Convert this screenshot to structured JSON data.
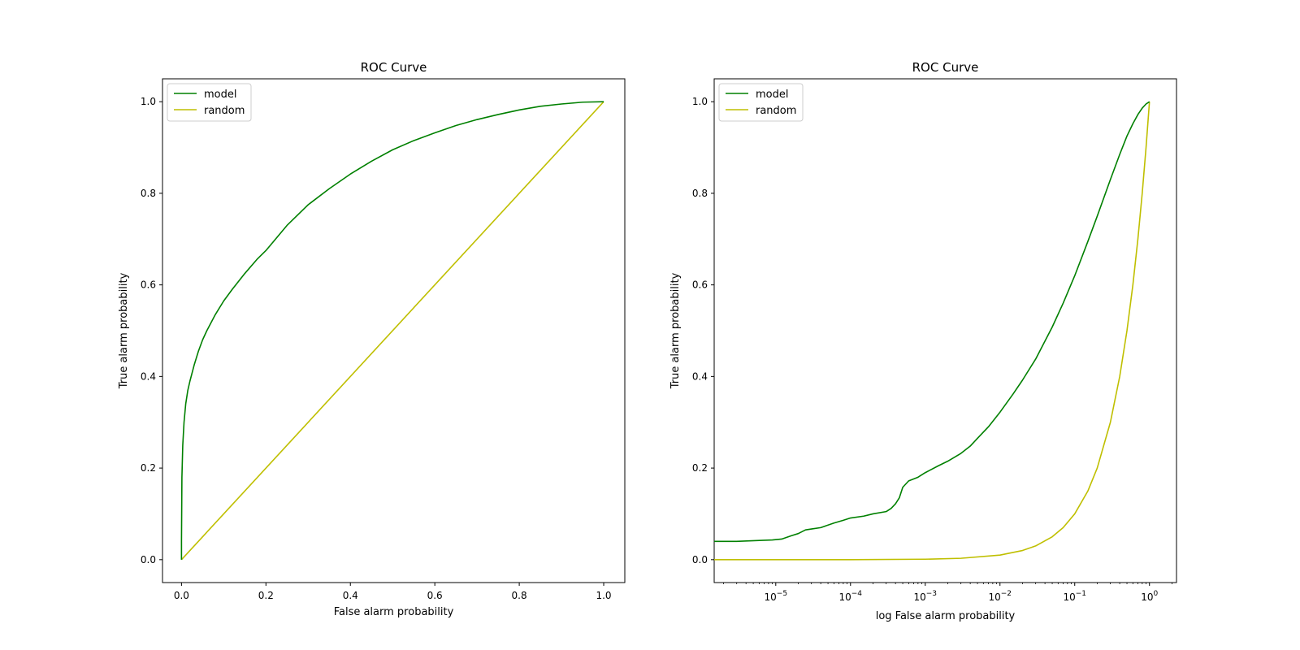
{
  "chart_data": [
    {
      "type": "line",
      "title": "ROC Curve",
      "xlabel": "False alarm probability",
      "ylabel": "True alarm probability",
      "xscale": "linear",
      "xlim": [
        -0.045,
        1.05
      ],
      "ylim": [
        -0.05,
        1.05
      ],
      "xticks": [
        0.0,
        0.2,
        0.4,
        0.6,
        0.8,
        1.0
      ],
      "xtick_labels": [
        "0.0",
        "0.2",
        "0.4",
        "0.6",
        "0.8",
        "1.0"
      ],
      "yticks": [
        0.0,
        0.2,
        0.4,
        0.6,
        0.8,
        1.0
      ],
      "ytick_labels": [
        "0.0",
        "0.2",
        "0.4",
        "0.6",
        "0.8",
        "1.0"
      ],
      "legend": "top-left",
      "grid": false,
      "series": [
        {
          "name": "model",
          "color": "#008000",
          "x": [
            0,
            0,
            0.001,
            0.003,
            0.006,
            0.01,
            0.015,
            0.02,
            0.03,
            0.04,
            0.05,
            0.06,
            0.08,
            0.1,
            0.12,
            0.15,
            0.18,
            0.2,
            0.25,
            0.3,
            0.35,
            0.4,
            0.45,
            0.5,
            0.55,
            0.6,
            0.65,
            0.7,
            0.75,
            0.8,
            0.85,
            0.9,
            0.95,
            1.0
          ],
          "y": [
            0,
            0.04,
            0.18,
            0.25,
            0.3,
            0.34,
            0.37,
            0.39,
            0.425,
            0.455,
            0.48,
            0.5,
            0.535,
            0.565,
            0.59,
            0.625,
            0.657,
            0.675,
            0.73,
            0.775,
            0.81,
            0.842,
            0.87,
            0.895,
            0.915,
            0.932,
            0.948,
            0.961,
            0.972,
            0.982,
            0.99,
            0.995,
            0.999,
            1.0
          ]
        },
        {
          "name": "random",
          "color": "#bfbf00",
          "x": [
            0,
            1
          ],
          "y": [
            0,
            1
          ]
        }
      ]
    },
    {
      "type": "line",
      "title": "ROC Curve",
      "xlabel": "log False alarm probability",
      "ylabel": "True alarm probability",
      "xscale": "log",
      "xlim": [
        1.5e-06,
        2.3
      ],
      "ylim": [
        -0.05,
        1.05
      ],
      "xticks": [
        1e-05,
        0.0001,
        0.001,
        0.01,
        0.1,
        1
      ],
      "xtick_labels": [
        {
          "base": "10",
          "exp": "−5"
        },
        {
          "base": "10",
          "exp": "−4"
        },
        {
          "base": "10",
          "exp": "−3"
        },
        {
          "base": "10",
          "exp": "−2"
        },
        {
          "base": "10",
          "exp": "−1"
        },
        {
          "base": "10",
          "exp": "0"
        }
      ],
      "yticks": [
        0.0,
        0.2,
        0.4,
        0.6,
        0.8,
        1.0
      ],
      "ytick_labels": [
        "0.0",
        "0.2",
        "0.4",
        "0.6",
        "0.8",
        "1.0"
      ],
      "legend": "top-left",
      "grid": false,
      "series": [
        {
          "name": "model",
          "color": "#008000",
          "x": [
            1.5e-06,
            3e-06,
            6e-06,
            9e-06,
            1.2e-05,
            1.6e-05,
            2e-05,
            2.5e-05,
            3e-05,
            4e-05,
            6e-05,
            8e-05,
            0.0001,
            0.00015,
            0.0002,
            0.0003,
            0.00035,
            0.0004,
            0.00045,
            0.0005,
            0.0006,
            0.0008,
            0.001,
            0.0015,
            0.002,
            0.003,
            0.004,
            0.005,
            0.007,
            0.01,
            0.015,
            0.02,
            0.03,
            0.05,
            0.07,
            0.1,
            0.15,
            0.2,
            0.3,
            0.4,
            0.5,
            0.6,
            0.7,
            0.8,
            0.9,
            1.0
          ],
          "y": [
            0.04,
            0.04,
            0.042,
            0.043,
            0.045,
            0.052,
            0.057,
            0.065,
            0.067,
            0.07,
            0.08,
            0.086,
            0.091,
            0.095,
            0.1,
            0.105,
            0.112,
            0.122,
            0.135,
            0.158,
            0.172,
            0.18,
            0.19,
            0.205,
            0.215,
            0.232,
            0.248,
            0.265,
            0.29,
            0.322,
            0.362,
            0.392,
            0.438,
            0.508,
            0.56,
            0.62,
            0.695,
            0.75,
            0.83,
            0.885,
            0.925,
            0.952,
            0.972,
            0.986,
            0.995,
            1.0
          ]
        },
        {
          "name": "random",
          "color": "#bfbf00",
          "x": [
            1.5e-06,
            0.0001,
            0.001,
            0.003,
            0.01,
            0.02,
            0.03,
            0.05,
            0.07,
            0.1,
            0.15,
            0.2,
            0.3,
            0.4,
            0.5,
            0.6,
            0.7,
            0.8,
            0.9,
            1.0
          ],
          "y": [
            0,
            0,
            0.001,
            0.003,
            0.01,
            0.02,
            0.03,
            0.05,
            0.07,
            0.1,
            0.15,
            0.2,
            0.3,
            0.4,
            0.5,
            0.6,
            0.7,
            0.8,
            0.9,
            1.0
          ]
        }
      ]
    }
  ]
}
